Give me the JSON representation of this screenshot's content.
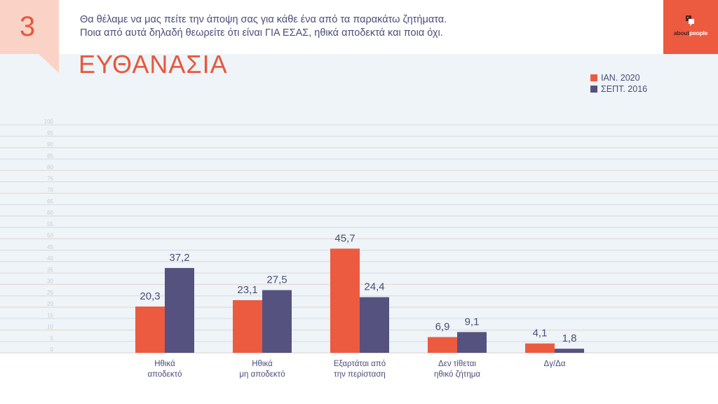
{
  "header": {
    "slide_number": "3",
    "question_line1": "Θα θέλαμε να μας πείτε την άποψη σας για κάθε ένα από τα παρακάτω ζητήματα.",
    "question_line2": "Ποια από αυτά δηλαδή θεωρείτε ότι είναι ΓΙΑ ΕΣΑΣ, ηθικά αποδεκτά και ποια όχι.",
    "logo_about": "about",
    "logo_people": "people",
    "logo_icon": "speech-bubble-icon"
  },
  "colors": {
    "accent": "#e8573d",
    "series_2020": "#ec5a40",
    "series_2016": "#55527f",
    "text": "#4a4d78",
    "chart_background": "#eef4f7",
    "slide_number_box": "#fbd3c6"
  },
  "chart_data": {
    "type": "bar",
    "title": "ΕΥΘΑΝΑΣΙΑ",
    "xlabel": "",
    "ylabel": "",
    "ylim": [
      0,
      100
    ],
    "y_ticks": [
      0,
      5,
      10,
      15,
      20,
      25,
      30,
      35,
      40,
      45,
      50,
      55,
      60,
      65,
      70,
      75,
      80,
      85,
      90,
      95,
      100
    ],
    "grid": true,
    "legend_position": "top-right",
    "categories": [
      [
        "Ηθικά",
        "αποδεκτό"
      ],
      [
        "Ηθικά",
        "μη αποδεκτό"
      ],
      [
        "Εξαρτάται από",
        "την περίσταση"
      ],
      [
        "Δεν τίθεται",
        "ηθικό ζήτημα"
      ],
      [
        "Δγ/Δα"
      ]
    ],
    "series": [
      {
        "name": "ΙΑΝ. 2020",
        "color": "#ec5a40",
        "values": [
          20.3,
          23.1,
          45.7,
          6.9,
          4.1
        ],
        "labels": [
          "20,3",
          "23,1",
          "45,7",
          "6,9",
          "4,1"
        ]
      },
      {
        "name": "ΣΕΠΤ. 2016",
        "color": "#55527f",
        "values": [
          37.2,
          27.5,
          24.4,
          9.1,
          1.8
        ],
        "labels": [
          "37,2",
          "27,5",
          "24,4",
          "9,1",
          "1,8"
        ]
      }
    ]
  }
}
